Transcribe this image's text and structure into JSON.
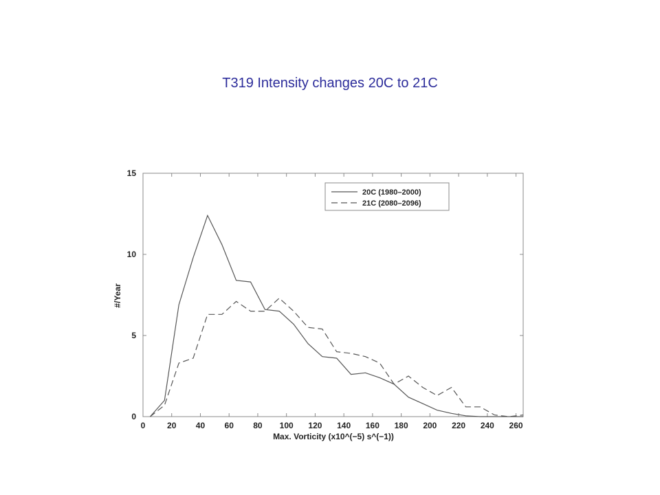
{
  "slide": {
    "title": "T319 Intensity changes 20C to 21C"
  },
  "chart_data": {
    "type": "line",
    "xlabel": "Max. Vorticity (x10^(−5) s^(−1))",
    "ylabel": "#/Year",
    "xlim": [
      0,
      265
    ],
    "ylim": [
      0,
      15
    ],
    "xticks": [
      0,
      20,
      40,
      60,
      80,
      100,
      120,
      140,
      160,
      180,
      200,
      220,
      240,
      260
    ],
    "yticks": [
      0,
      5,
      10,
      15
    ],
    "legend_position": "top-right",
    "grid": false,
    "series": [
      {
        "name": "20C (1980–2000)",
        "style": "solid",
        "color": "#555555",
        "x": [
          5,
          15,
          25,
          35,
          45,
          55,
          65,
          75,
          85,
          95,
          105,
          115,
          125,
          135,
          145,
          155,
          165,
          175,
          185,
          195,
          205,
          215,
          225,
          235,
          245,
          255,
          265
        ],
        "y": [
          0,
          1.0,
          6.9,
          9.8,
          12.4,
          10.6,
          8.4,
          8.3,
          6.6,
          6.5,
          5.7,
          4.5,
          3.7,
          3.6,
          2.6,
          2.7,
          2.4,
          2.0,
          1.2,
          0.8,
          0.4,
          0.2,
          0.05,
          0.0,
          0.0,
          0.0,
          0.0
        ]
      },
      {
        "name": "21C (2080–2096)",
        "style": "dashed",
        "color": "#555555",
        "x": [
          5,
          15,
          25,
          35,
          45,
          55,
          65,
          75,
          85,
          95,
          105,
          115,
          125,
          135,
          145,
          155,
          165,
          175,
          185,
          195,
          205,
          215,
          225,
          235,
          245,
          255,
          265
        ],
        "y": [
          0,
          0.7,
          3.3,
          3.6,
          6.3,
          6.3,
          7.1,
          6.5,
          6.5,
          7.3,
          6.5,
          5.5,
          5.4,
          4.0,
          3.9,
          3.7,
          3.3,
          2.0,
          2.5,
          1.8,
          1.3,
          1.8,
          0.6,
          0.6,
          0.1,
          0.0,
          0.1
        ]
      }
    ]
  }
}
